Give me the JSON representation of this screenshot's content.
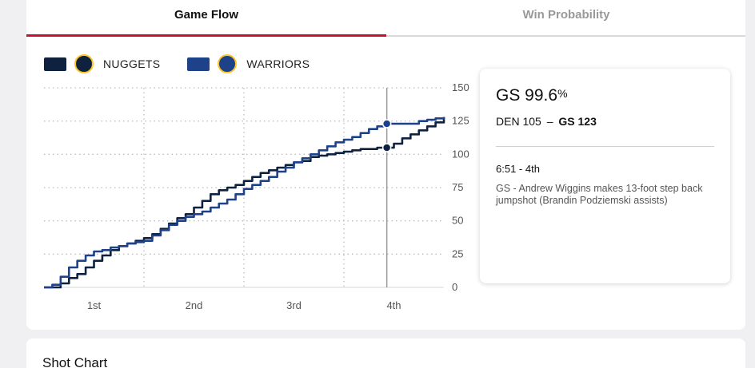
{
  "tabs": [
    {
      "label": "Game Flow",
      "active": true
    },
    {
      "label": "Win Probability",
      "active": false
    }
  ],
  "legend": [
    {
      "team": "NUGGETS",
      "color": "#0e2240",
      "logo_icon": "nuggets-logo-icon",
      "logo_color": "#fec524"
    },
    {
      "team": "WARRIORS",
      "color": "#1d428a",
      "logo_icon": "warriors-logo-icon",
      "logo_color": "#ffc72c"
    }
  ],
  "info": {
    "team_prob": "GS 99.6",
    "prob_unit": "%",
    "score_away": "DEN 105",
    "score_sep": "–",
    "score_home": "GS 123",
    "time": "6:51 - 4th",
    "description": "GS - Andrew Wiggins makes 13-foot step back jumpshot (Brandin Podziemski assists)"
  },
  "section2": {
    "title": "Shot Chart"
  },
  "chart_data": {
    "type": "line",
    "title": "",
    "xlabel": "",
    "ylabel": "",
    "x_unit": "game minutes elapsed",
    "xlim": [
      0,
      48
    ],
    "ylim": [
      0,
      150
    ],
    "yticks": [
      0,
      25,
      50,
      75,
      100,
      125,
      150
    ],
    "xticks": [
      {
        "label": "1st",
        "at": 6
      },
      {
        "label": "2nd",
        "at": 18
      },
      {
        "label": "3rd",
        "at": 30
      },
      {
        "label": "4th",
        "at": 42
      }
    ],
    "grid": true,
    "legend_position": "top-left",
    "marker": {
      "x": 41.15,
      "values": [
        {
          "series": "WARRIORS",
          "y": 123
        },
        {
          "series": "NUGGETS",
          "y": 105
        }
      ]
    },
    "series": [
      {
        "name": "NUGGETS",
        "color": "#0e2240",
        "x": [
          0,
          2,
          3,
          4,
          5,
          6,
          7,
          8,
          9,
          10,
          11,
          12,
          13,
          14,
          15,
          16,
          17,
          18,
          19,
          20,
          21,
          22,
          23,
          24,
          25,
          26,
          27,
          28,
          29,
          30,
          31,
          32,
          33,
          34,
          35,
          36,
          37,
          38,
          39,
          40,
          41.15,
          42,
          43,
          44,
          45,
          46,
          47,
          48
        ],
        "values": [
          0,
          3,
          7,
          10,
          15,
          20,
          24,
          28,
          31,
          33,
          35,
          37,
          40,
          44,
          48,
          52,
          55,
          60,
          65,
          70,
          73,
          75,
          77,
          80,
          83,
          86,
          88,
          90,
          92,
          94,
          95,
          98,
          99,
          100,
          101,
          102,
          103,
          104,
          104,
          105,
          105,
          108,
          112,
          115,
          118,
          121,
          124,
          128
        ]
      },
      {
        "name": "WARRIORS",
        "color": "#1d428a",
        "x": [
          0,
          1,
          2,
          3,
          4,
          5,
          6,
          7,
          8,
          9,
          10,
          11,
          12,
          13,
          14,
          15,
          16,
          17,
          18,
          19,
          20,
          21,
          22,
          23,
          24,
          25,
          26,
          27,
          28,
          29,
          30,
          31,
          32,
          33,
          34,
          35,
          36,
          37,
          38,
          39,
          40,
          41.15,
          42,
          43,
          44,
          45,
          46,
          47,
          48
        ],
        "values": [
          0,
          2,
          8,
          15,
          20,
          24,
          27,
          28,
          30,
          31,
          33,
          34,
          35,
          39,
          43,
          47,
          50,
          53,
          55,
          57,
          60,
          63,
          66,
          70,
          74,
          77,
          80,
          83,
          87,
          90,
          94,
          97,
          100,
          103,
          106,
          109,
          111,
          113,
          116,
          119,
          121,
          123,
          123,
          123,
          123,
          125,
          126,
          127,
          128
        ]
      }
    ]
  }
}
